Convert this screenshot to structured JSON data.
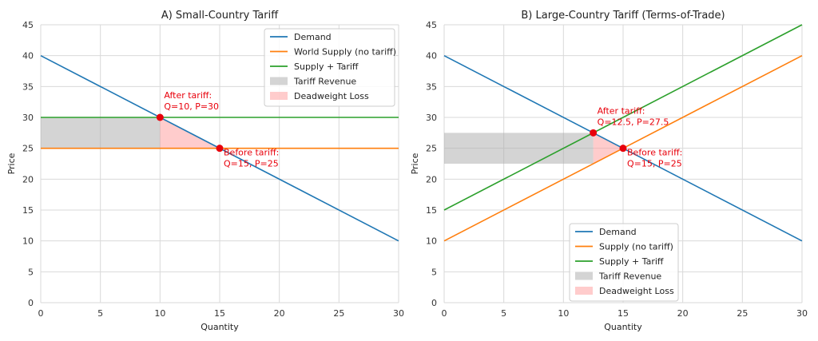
{
  "colors": {
    "demand": "#1f77b4",
    "supply": "#ff7f0e",
    "tariff": "#2ca02c",
    "revenue": "#a9a9a9",
    "deadweight": "#ff9999",
    "point": "#e8000b",
    "grid": "#d9d9d9"
  },
  "chart_data": [
    {
      "type": "line",
      "title": "A) Small-Country Tariff",
      "xlabel": "Quantity",
      "ylabel": "Price",
      "xlim": [
        0,
        30
      ],
      "ylim": [
        0,
        45
      ],
      "xticks": [
        0,
        5,
        10,
        15,
        20,
        25,
        30
      ],
      "yticks": [
        0,
        5,
        10,
        15,
        20,
        25,
        30,
        35,
        40,
        45
      ],
      "grid": true,
      "legend_position": "top-right",
      "series": [
        {
          "name": "Demand",
          "color_key": "demand",
          "x": [
            0,
            30
          ],
          "y": [
            40,
            10
          ]
        },
        {
          "name": "World Supply (no tariff)",
          "color_key": "supply",
          "x": [
            0,
            30
          ],
          "y": [
            25,
            25
          ]
        },
        {
          "name": "Supply + Tariff",
          "color_key": "tariff",
          "x": [
            0,
            30
          ],
          "y": [
            30,
            30
          ]
        }
      ],
      "areas": [
        {
          "name": "Tariff Revenue",
          "color_key": "revenue",
          "x": [
            0,
            10,
            10,
            0
          ],
          "y": [
            25,
            25,
            30,
            30
          ]
        },
        {
          "name": "Deadweight Loss",
          "color_key": "deadweight",
          "x": [
            10,
            15,
            10
          ],
          "y": [
            30,
            25,
            25
          ]
        }
      ],
      "points": [
        {
          "x": 10,
          "y": 30,
          "label": [
            "After tariff:",
            "Q=10, P=30"
          ],
          "label_side": "above-right"
        },
        {
          "x": 15,
          "y": 25,
          "label": [
            "Before tariff:",
            "Q=15, P=25"
          ],
          "label_side": "below-right"
        }
      ]
    },
    {
      "type": "line",
      "title": "B) Large-Country Tariff (Terms-of-Trade)",
      "xlabel": "Quantity",
      "ylabel": "Price",
      "xlim": [
        0,
        30
      ],
      "ylim": [
        0,
        45
      ],
      "xticks": [
        0,
        5,
        10,
        15,
        20,
        25,
        30
      ],
      "yticks": [
        0,
        5,
        10,
        15,
        20,
        25,
        30,
        35,
        40,
        45
      ],
      "grid": true,
      "legend_position": "bottom-center",
      "series": [
        {
          "name": "Demand",
          "color_key": "demand",
          "x": [
            0,
            30
          ],
          "y": [
            40,
            10
          ]
        },
        {
          "name": "Supply (no tariff)",
          "color_key": "supply",
          "x": [
            0,
            30
          ],
          "y": [
            10,
            40
          ]
        },
        {
          "name": "Supply + Tariff",
          "color_key": "tariff",
          "x": [
            0,
            30
          ],
          "y": [
            15,
            45
          ]
        }
      ],
      "areas": [
        {
          "name": "Tariff Revenue",
          "color_key": "revenue",
          "x": [
            0,
            12.5,
            12.5,
            0
          ],
          "y": [
            22.5,
            22.5,
            27.5,
            27.5
          ]
        },
        {
          "name": "Deadweight Loss",
          "color_key": "deadweight",
          "x": [
            12.5,
            15,
            12.5
          ],
          "y": [
            27.5,
            25,
            22.5
          ]
        }
      ],
      "points": [
        {
          "x": 12.5,
          "y": 27.5,
          "label": [
            "After tariff:",
            "Q=12.5, P=27.5"
          ],
          "label_side": "above-right"
        },
        {
          "x": 15,
          "y": 25,
          "label": [
            "Before tariff:",
            "Q=15, P=25"
          ],
          "label_side": "below-right"
        }
      ]
    }
  ]
}
